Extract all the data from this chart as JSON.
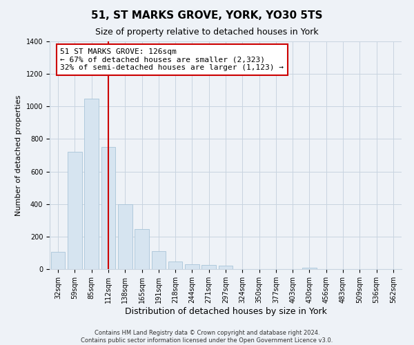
{
  "title": "51, ST MARKS GROVE, YORK, YO30 5TS",
  "subtitle": "Size of property relative to detached houses in York",
  "xlabel": "Distribution of detached houses by size in York",
  "ylabel": "Number of detached properties",
  "bar_labels": [
    "32sqm",
    "59sqm",
    "85sqm",
    "112sqm",
    "138sqm",
    "165sqm",
    "191sqm",
    "218sqm",
    "244sqm",
    "271sqm",
    "297sqm",
    "324sqm",
    "350sqm",
    "377sqm",
    "403sqm",
    "430sqm",
    "456sqm",
    "483sqm",
    "509sqm",
    "536sqm",
    "562sqm"
  ],
  "bar_heights": [
    105,
    720,
    1050,
    750,
    400,
    245,
    110,
    48,
    28,
    25,
    20,
    0,
    0,
    0,
    0,
    10,
    0,
    0,
    0,
    0,
    0
  ],
  "bar_color": "#d6e4f0",
  "bar_edge_color": "#a8c4d8",
  "highlight_line_index": 3,
  "highlight_line_color": "#cc0000",
  "annotation_line1": "51 ST MARKS GROVE: 126sqm",
  "annotation_line2": "← 67% of detached houses are smaller (2,323)",
  "annotation_line3": "32% of semi-detached houses are larger (1,123) →",
  "annotation_box_edge_color": "#cc0000",
  "annotation_box_bg": "#ffffff",
  "ylim": [
    0,
    1400
  ],
  "yticks": [
    0,
    200,
    400,
    600,
    800,
    1000,
    1200,
    1400
  ],
  "footer_text": "Contains HM Land Registry data © Crown copyright and database right 2024.\nContains public sector information licensed under the Open Government Licence v3.0.",
  "grid_color": "#c8d4e0",
  "bg_color": "#eef2f7",
  "title_fontsize": 11,
  "subtitle_fontsize": 9,
  "xlabel_fontsize": 9,
  "ylabel_fontsize": 8,
  "tick_fontsize": 7,
  "annotation_fontsize": 8,
  "footer_fontsize": 6
}
